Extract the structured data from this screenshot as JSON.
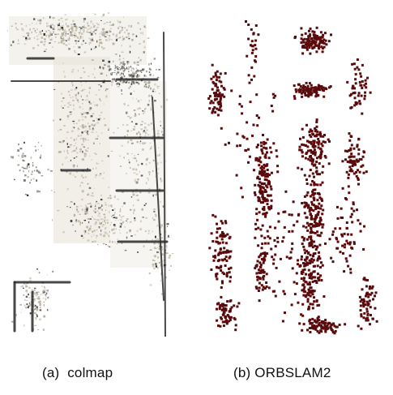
{
  "figure": {
    "panel_a": {
      "caption": "(a)  colmap",
      "colors": {
        "floor_tint": "#e6e2d6",
        "texture": "#b8b09e",
        "dark_edge": "#2a2a2a",
        "mid_gray": "#7c786e"
      }
    },
    "panel_b": {
      "caption": "(b) ORBSLAM2",
      "colors": {
        "point": "#5a0a0a"
      }
    }
  }
}
